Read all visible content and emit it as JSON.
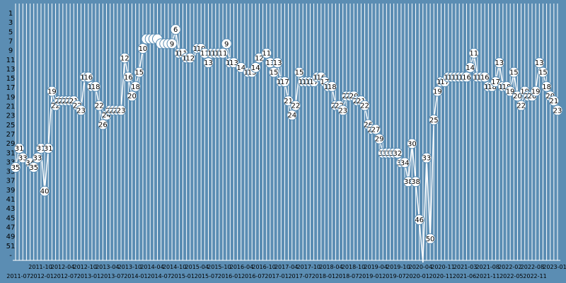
{
  "chart_data": {
    "type": "line",
    "title": "",
    "xlabel": "",
    "ylabel": "",
    "y_inverted": true,
    "ylim": [
      1,
      55
    ],
    "grid": true,
    "colors": {
      "background": "#5b8db3",
      "grid": "#ffffff",
      "line": "#ffffff",
      "marker_fill": "#ffffff",
      "marker_stroke": "#5b8db3"
    },
    "y_ticks": [
      "1",
      "3",
      "5",
      "7",
      "9",
      "11",
      "13",
      "15",
      "17",
      "19",
      "21",
      "23",
      "25",
      "27",
      "29",
      "31",
      "33",
      "35",
      "37",
      "39",
      "41",
      "43",
      "45",
      "47",
      "49",
      "51",
      "-"
    ],
    "x_ticks_upper": [
      "2011-10",
      "2012-04",
      "2012-10",
      "2013-04",
      "2013-10",
      "2014-04",
      "2014-10",
      "2015-04",
      "2015-10",
      "2016-04",
      "2016-10",
      "2017-04",
      "2017-10",
      "2018-04",
      "2018-10",
      "2019-04",
      "2019-10",
      "2020-04",
      "2020-11",
      "2021-03",
      "2021-08",
      "2022-02",
      "2022-08",
      "2023-01"
    ],
    "x_ticks_lower": [
      "2011-07",
      "2012-01",
      "2012-07",
      "2013-01",
      "2013-07",
      "2014-01",
      "2014-07",
      "2015-01",
      "2015-07",
      "2016-01",
      "2016-07",
      "2017-01",
      "2017-07",
      "2018-01",
      "2018-07",
      "2019-01",
      "2019-07",
      "2020-01",
      "2020-11",
      "2021-06",
      "2021-11",
      "2022-05",
      "2022-11"
    ],
    "points": [
      {
        "i": 0,
        "y": 35
      },
      {
        "i": 1,
        "y": 31
      },
      {
        "i": 2,
        "y": 33
      },
      {
        "i": 3,
        "y": 33
      },
      {
        "i": 4,
        "y": 34
      },
      {
        "i": 5,
        "y": 35
      },
      {
        "i": 6,
        "y": 33
      },
      {
        "i": 7,
        "y": 31
      },
      {
        "i": 8,
        "y": 40
      },
      {
        "i": 9,
        "y": 31
      },
      {
        "i": 10,
        "y": 19
      },
      {
        "i": 11,
        "y": 22
      },
      {
        "i": 12,
        "y": 21
      },
      {
        "i": 13,
        "y": 21
      },
      {
        "i": 14,
        "y": 21
      },
      {
        "i": 15,
        "y": 21
      },
      {
        "i": 16,
        "y": 21
      },
      {
        "i": 17,
        "y": 22
      },
      {
        "i": 18,
        "y": 23
      },
      {
        "i": 19,
        "y": 16
      },
      {
        "i": 20,
        "y": 16
      },
      {
        "i": 21,
        "y": 18
      },
      {
        "i": 22,
        "y": 18
      },
      {
        "i": 23,
        "y": 22
      },
      {
        "i": 24,
        "y": 26
      },
      {
        "i": 25,
        "y": 24
      },
      {
        "i": 26,
        "y": 23
      },
      {
        "i": 27,
        "y": 23
      },
      {
        "i": 28,
        "y": 23
      },
      {
        "i": 29,
        "y": 23
      },
      {
        "i": 30,
        "y": 12
      },
      {
        "i": 31,
        "y": 16
      },
      {
        "i": 32,
        "y": 20
      },
      {
        "i": 33,
        "y": 18
      },
      {
        "i": 34,
        "y": 15
      },
      {
        "i": 35,
        "y": 10
      },
      {
        "i": 36,
        "y": 8
      },
      {
        "i": 37,
        "y": 8
      },
      {
        "i": 38,
        "y": 8
      },
      {
        "i": 39,
        "y": 8
      },
      {
        "i": 40,
        "y": 9
      },
      {
        "i": 41,
        "y": 9
      },
      {
        "i": 42,
        "y": 9
      },
      {
        "i": 43,
        "y": 9
      },
      {
        "i": 44,
        "y": 6
      },
      {
        "i": 45,
        "y": 11
      },
      {
        "i": 46,
        "y": 11
      },
      {
        "i": 47,
        "y": 12
      },
      {
        "i": 48,
        "y": 12
      },
      {
        "i": 49,
        "y": 12
      },
      {
        "i": 50,
        "y": 10
      },
      {
        "i": 51,
        "y": 10
      },
      {
        "i": 52,
        "y": 11
      },
      {
        "i": 53,
        "y": 13
      },
      {
        "i": 54,
        "y": 11
      },
      {
        "i": 55,
        "y": 11
      },
      {
        "i": 56,
        "y": 11
      },
      {
        "i": 57,
        "y": 11
      },
      {
        "i": 58,
        "y": 9
      },
      {
        "i": 59,
        "y": 13
      },
      {
        "i": 60,
        "y": 13
      },
      {
        "i": 61,
        "y": 13
      },
      {
        "i": 62,
        "y": 14
      },
      {
        "i": 63,
        "y": 14
      },
      {
        "i": 64,
        "y": 15
      },
      {
        "i": 65,
        "y": 15
      },
      {
        "i": 66,
        "y": 14
      },
      {
        "i": 67,
        "y": 12
      },
      {
        "i": 68,
        "y": 12
      },
      {
        "i": 69,
        "y": 11
      },
      {
        "i": 70,
        "y": 13
      },
      {
        "i": 71,
        "y": 15
      },
      {
        "i": 72,
        "y": 13
      },
      {
        "i": 73,
        "y": 17
      },
      {
        "i": 74,
        "y": 17
      },
      {
        "i": 75,
        "y": 21
      },
      {
        "i": 76,
        "y": 24
      },
      {
        "i": 77,
        "y": 22
      },
      {
        "i": 78,
        "y": 15
      },
      {
        "i": 79,
        "y": 17
      },
      {
        "i": 80,
        "y": 17
      },
      {
        "i": 81,
        "y": 17
      },
      {
        "i": 82,
        "y": 17
      },
      {
        "i": 83,
        "y": 16
      },
      {
        "i": 84,
        "y": 16
      },
      {
        "i": 85,
        "y": 17
      },
      {
        "i": 86,
        "y": 18
      },
      {
        "i": 87,
        "y": 18
      },
      {
        "i": 88,
        "y": 22
      },
      {
        "i": 89,
        "y": 22
      },
      {
        "i": 90,
        "y": 23
      },
      {
        "i": 91,
        "y": 20
      },
      {
        "i": 92,
        "y": 20
      },
      {
        "i": 93,
        "y": 20
      },
      {
        "i": 94,
        "y": 21
      },
      {
        "i": 95,
        "y": 21
      },
      {
        "i": 96,
        "y": 22
      },
      {
        "i": 97,
        "y": 26
      },
      {
        "i": 98,
        "y": 27
      },
      {
        "i": 99,
        "y": 27
      },
      {
        "i": 100,
        "y": 29
      },
      {
        "i": 101,
        "y": 32
      },
      {
        "i": 102,
        "y": 32
      },
      {
        "i": 103,
        "y": 32
      },
      {
        "i": 104,
        "y": 32
      },
      {
        "i": 105,
        "y": 32
      },
      {
        "i": 106,
        "y": 34
      },
      {
        "i": 107,
        "y": 34
      },
      {
        "i": 108,
        "y": 38
      },
      {
        "i": 109,
        "y": 30
      },
      {
        "i": 110,
        "y": 38
      },
      {
        "i": 111,
        "y": 46
      },
      {
        "i": 112,
        "y": 55
      },
      {
        "i": 113,
        "y": 33
      },
      {
        "i": 114,
        "y": 50
      },
      {
        "i": 115,
        "y": 25
      },
      {
        "i": 116,
        "y": 19
      },
      {
        "i": 117,
        "y": 17
      },
      {
        "i": 118,
        "y": 17
      },
      {
        "i": 119,
        "y": 16
      },
      {
        "i": 120,
        "y": 16
      },
      {
        "i": 121,
        "y": 16
      },
      {
        "i": 122,
        "y": 16
      },
      {
        "i": 123,
        "y": 16
      },
      {
        "i": 124,
        "y": 16
      },
      {
        "i": 125,
        "y": 14
      },
      {
        "i": 126,
        "y": 11
      },
      {
        "i": 127,
        "y": 16
      },
      {
        "i": 128,
        "y": 16
      },
      {
        "i": 129,
        "y": 16
      },
      {
        "i": 130,
        "y": 18
      },
      {
        "i": 131,
        "y": 18
      },
      {
        "i": 132,
        "y": 17
      },
      {
        "i": 133,
        "y": 13
      },
      {
        "i": 134,
        "y": 18
      },
      {
        "i": 135,
        "y": 18
      },
      {
        "i": 136,
        "y": 19
      },
      {
        "i": 137,
        "y": 15
      },
      {
        "i": 138,
        "y": 20
      },
      {
        "i": 139,
        "y": 22
      },
      {
        "i": 140,
        "y": 19
      },
      {
        "i": 141,
        "y": 20
      },
      {
        "i": 142,
        "y": 20
      },
      {
        "i": 143,
        "y": 19
      },
      {
        "i": 144,
        "y": 13
      },
      {
        "i": 145,
        "y": 15
      },
      {
        "i": 146,
        "y": 18
      },
      {
        "i": 147,
        "y": 20
      },
      {
        "i": 148,
        "y": 21
      },
      {
        "i": 149,
        "y": 23
      }
    ],
    "labels": [
      {
        "i": 0,
        "y": 35,
        "text": "35"
      },
      {
        "i": 1,
        "y": 31,
        "text": "31"
      },
      {
        "i": 2,
        "y": 33,
        "text": "33"
      },
      {
        "i": 4,
        "y": 34,
        "text": "34"
      },
      {
        "i": 5,
        "y": 35,
        "text": "35"
      },
      {
        "i": 6,
        "y": 33,
        "text": "33"
      },
      {
        "i": 7,
        "y": 31,
        "text": "31"
      },
      {
        "i": 8,
        "y": 40,
        "text": "40"
      },
      {
        "i": 9,
        "y": 31,
        "text": "31"
      },
      {
        "i": 10,
        "y": 19,
        "text": "19"
      },
      {
        "i": 11,
        "y": 22,
        "text": "22"
      },
      {
        "i": 12,
        "y": 21,
        "text": "21"
      },
      {
        "i": 13,
        "y": 21,
        "text": "21"
      },
      {
        "i": 14,
        "y": 21,
        "text": "21"
      },
      {
        "i": 15,
        "y": 21,
        "text": "21"
      },
      {
        "i": 16,
        "y": 21,
        "text": "21"
      },
      {
        "i": 17,
        "y": 22,
        "text": "22"
      },
      {
        "i": 18,
        "y": 23,
        "text": "23"
      },
      {
        "i": 19,
        "y": 16,
        "text": "16"
      },
      {
        "i": 20,
        "y": 16,
        "text": "16"
      },
      {
        "i": 21,
        "y": 18,
        "text": "18"
      },
      {
        "i": 22,
        "y": 18,
        "text": "18"
      },
      {
        "i": 23,
        "y": 22,
        "text": "22"
      },
      {
        "i": 24,
        "y": 26,
        "text": "26"
      },
      {
        "i": 25,
        "y": 24,
        "text": "24"
      },
      {
        "i": 26,
        "y": 23,
        "text": "23"
      },
      {
        "i": 27,
        "y": 23,
        "text": "23"
      },
      {
        "i": 28,
        "y": 23,
        "text": "23"
      },
      {
        "i": 29,
        "y": 23,
        "text": "23"
      },
      {
        "i": 30,
        "y": 12,
        "text": "12"
      },
      {
        "i": 31,
        "y": 16,
        "text": "16"
      },
      {
        "i": 32,
        "y": 20,
        "text": "20"
      },
      {
        "i": 33,
        "y": 18,
        "text": "18"
      },
      {
        "i": 34,
        "y": 15,
        "text": "15"
      },
      {
        "i": 35,
        "y": 10,
        "text": "10"
      },
      {
        "i": 36,
        "y": 8,
        "text": ""
      },
      {
        "i": 37,
        "y": 8,
        "text": ""
      },
      {
        "i": 38,
        "y": 8,
        "text": ""
      },
      {
        "i": 39,
        "y": 8,
        "text": ""
      },
      {
        "i": 40,
        "y": 9,
        "text": ""
      },
      {
        "i": 41,
        "y": 9,
        "text": ""
      },
      {
        "i": 42,
        "y": 9,
        "text": ""
      },
      {
        "i": 43,
        "y": 9,
        "text": "9"
      },
      {
        "i": 44,
        "y": 6,
        "text": "6"
      },
      {
        "i": 45,
        "y": 11,
        "text": "11"
      },
      {
        "i": 46,
        "y": 11,
        "text": "11"
      },
      {
        "i": 47,
        "y": 12,
        "text": "12"
      },
      {
        "i": 48,
        "y": 12,
        "text": "12"
      },
      {
        "i": 50,
        "y": 10,
        "text": "10"
      },
      {
        "i": 51,
        "y": 10,
        "text": "10"
      },
      {
        "i": 52,
        "y": 11,
        "text": "11"
      },
      {
        "i": 53,
        "y": 13,
        "text": "13"
      },
      {
        "i": 54,
        "y": 11,
        "text": "11"
      },
      {
        "i": 55,
        "y": 11,
        "text": "11"
      },
      {
        "i": 56,
        "y": 11,
        "text": "11"
      },
      {
        "i": 57,
        "y": 11,
        "text": "11"
      },
      {
        "i": 58,
        "y": 9,
        "text": "9"
      },
      {
        "i": 59,
        "y": 13,
        "text": "13"
      },
      {
        "i": 60,
        "y": 13,
        "text": "13"
      },
      {
        "i": 62,
        "y": 14,
        "text": "14"
      },
      {
        "i": 64,
        "y": 15,
        "text": "15"
      },
      {
        "i": 65,
        "y": 15,
        "text": "15"
      },
      {
        "i": 66,
        "y": 14,
        "text": "14"
      },
      {
        "i": 67,
        "y": 12,
        "text": "12"
      },
      {
        "i": 69,
        "y": 11,
        "text": "11"
      },
      {
        "i": 70,
        "y": 13,
        "text": "13"
      },
      {
        "i": 71,
        "y": 15,
        "text": "15"
      },
      {
        "i": 72,
        "y": 13,
        "text": "13"
      },
      {
        "i": 73,
        "y": 17,
        "text": "17"
      },
      {
        "i": 74,
        "y": 17,
        "text": "17"
      },
      {
        "i": 75,
        "y": 21,
        "text": "21"
      },
      {
        "i": 76,
        "y": 24,
        "text": "24"
      },
      {
        "i": 77,
        "y": 22,
        "text": "22"
      },
      {
        "i": 78,
        "y": 15,
        "text": "15"
      },
      {
        "i": 79,
        "y": 17,
        "text": "17"
      },
      {
        "i": 80,
        "y": 17,
        "text": "17"
      },
      {
        "i": 81,
        "y": 17,
        "text": "17"
      },
      {
        "i": 82,
        "y": 17,
        "text": "17"
      },
      {
        "i": 83,
        "y": 16,
        "text": "16"
      },
      {
        "i": 84,
        "y": 16,
        "text": "16"
      },
      {
        "i": 85,
        "y": 17,
        "text": "17"
      },
      {
        "i": 86,
        "y": 18,
        "text": "18"
      },
      {
        "i": 87,
        "y": 18,
        "text": "18"
      },
      {
        "i": 88,
        "y": 22,
        "text": "22"
      },
      {
        "i": 89,
        "y": 22,
        "text": "22"
      },
      {
        "i": 90,
        "y": 23,
        "text": "23"
      },
      {
        "i": 91,
        "y": 20,
        "text": "20"
      },
      {
        "i": 92,
        "y": 20,
        "text": "20"
      },
      {
        "i": 93,
        "y": 20,
        "text": "20"
      },
      {
        "i": 94,
        "y": 21,
        "text": "21"
      },
      {
        "i": 95,
        "y": 21,
        "text": "21"
      },
      {
        "i": 96,
        "y": 22,
        "text": "22"
      },
      {
        "i": 97,
        "y": 26,
        "text": "26"
      },
      {
        "i": 98,
        "y": 27,
        "text": "27"
      },
      {
        "i": 99,
        "y": 27,
        "text": "27"
      },
      {
        "i": 100,
        "y": 29,
        "text": "29"
      },
      {
        "i": 101,
        "y": 32,
        "text": "32"
      },
      {
        "i": 102,
        "y": 32,
        "text": "32"
      },
      {
        "i": 103,
        "y": 32,
        "text": "32"
      },
      {
        "i": 104,
        "y": 32,
        "text": "32"
      },
      {
        "i": 105,
        "y": 32,
        "text": "32"
      },
      {
        "i": 106,
        "y": 34,
        "text": "34"
      },
      {
        "i": 107,
        "y": 34,
        "text": "34"
      },
      {
        "i": 108,
        "y": 38,
        "text": "38"
      },
      {
        "i": 109,
        "y": 30,
        "text": "30"
      },
      {
        "i": 110,
        "y": 38,
        "text": "38"
      },
      {
        "i": 111,
        "y": 46,
        "text": "46"
      },
      {
        "i": 113,
        "y": 33,
        "text": "33"
      },
      {
        "i": 114,
        "y": 50,
        "text": "50"
      },
      {
        "i": 115,
        "y": 25,
        "text": "25"
      },
      {
        "i": 116,
        "y": 19,
        "text": "19"
      },
      {
        "i": 117,
        "y": 17,
        "text": "17"
      },
      {
        "i": 118,
        "y": 17,
        "text": "17"
      },
      {
        "i": 119,
        "y": 16,
        "text": "16"
      },
      {
        "i": 120,
        "y": 16,
        "text": "16"
      },
      {
        "i": 121,
        "y": 16,
        "text": "16"
      },
      {
        "i": 122,
        "y": 16,
        "text": "16"
      },
      {
        "i": 123,
        "y": 16,
        "text": "16"
      },
      {
        "i": 124,
        "y": 16,
        "text": "16"
      },
      {
        "i": 125,
        "y": 14,
        "text": "14"
      },
      {
        "i": 126,
        "y": 11,
        "text": "11"
      },
      {
        "i": 127,
        "y": 16,
        "text": "16"
      },
      {
        "i": 128,
        "y": 16,
        "text": "16"
      },
      {
        "i": 129,
        "y": 16,
        "text": "16"
      },
      {
        "i": 130,
        "y": 18,
        "text": "18"
      },
      {
        "i": 131,
        "y": 18,
        "text": "18"
      },
      {
        "i": 132,
        "y": 17,
        "text": "17"
      },
      {
        "i": 133,
        "y": 13,
        "text": "13"
      },
      {
        "i": 134,
        "y": 18,
        "text": "18"
      },
      {
        "i": 135,
        "y": 18,
        "text": "18"
      },
      {
        "i": 136,
        "y": 19,
        "text": "19"
      },
      {
        "i": 137,
        "y": 15,
        "text": "15"
      },
      {
        "i": 138,
        "y": 20,
        "text": "20"
      },
      {
        "i": 139,
        "y": 22,
        "text": "22"
      },
      {
        "i": 140,
        "y": 19,
        "text": "19"
      },
      {
        "i": 141,
        "y": 20,
        "text": "20"
      },
      {
        "i": 142,
        "y": 20,
        "text": "20"
      },
      {
        "i": 143,
        "y": 19,
        "text": "19"
      },
      {
        "i": 144,
        "y": 13,
        "text": "13"
      },
      {
        "i": 145,
        "y": 15,
        "text": "15"
      },
      {
        "i": 146,
        "y": 18,
        "text": "18"
      },
      {
        "i": 147,
        "y": 20,
        "text": "20"
      },
      {
        "i": 148,
        "y": 21,
        "text": "21"
      },
      {
        "i": 149,
        "y": 23,
        "text": "23"
      }
    ]
  }
}
